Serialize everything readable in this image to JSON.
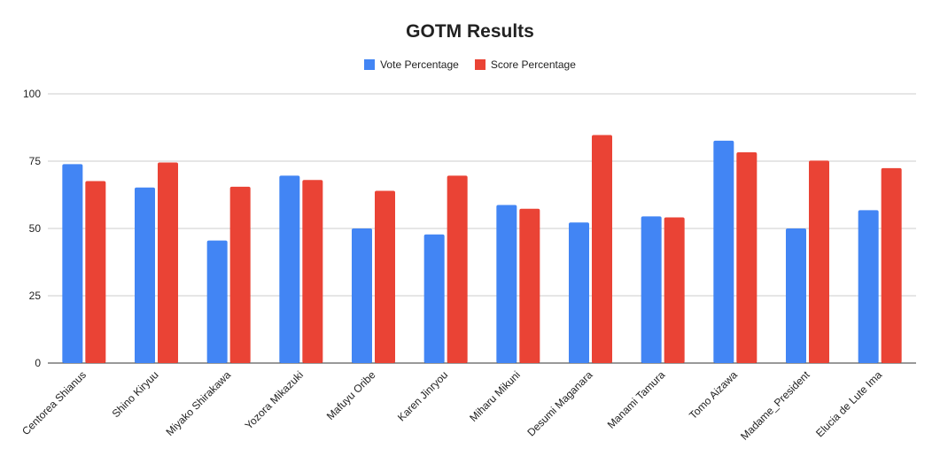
{
  "chart_data": {
    "type": "bar",
    "title": "GOTM Results",
    "xlabel": "",
    "ylabel": "",
    "ylim": [
      0,
      100
    ],
    "yticks": [
      0,
      25,
      50,
      75,
      100
    ],
    "grid": true,
    "legend_position": "top",
    "categories": [
      "Centorea Shianus",
      "Shino Kiryuu",
      "Miyako Shirakawa",
      "Yozora Mikazuki",
      "Mafuyu Oribe",
      "Karen Jinryou",
      "Miharu Mikuni",
      "Desumi Maganara",
      "Manami Tamura",
      "Tomo Aizawa",
      "Madame_President",
      "Elucia de Lute Ima"
    ],
    "series": [
      {
        "name": "Vote Percentage",
        "color": "#4285f4",
        "values": [
          73.9,
          65.2,
          45.5,
          69.6,
          50.0,
          47.8,
          58.7,
          52.2,
          54.5,
          82.6,
          50.0,
          56.8
        ]
      },
      {
        "name": "Score Percentage",
        "color": "#ea4335",
        "values": [
          67.6,
          74.5,
          65.5,
          68.0,
          64.0,
          69.6,
          57.3,
          84.7,
          54.1,
          78.3,
          75.2,
          72.4
        ]
      }
    ]
  }
}
